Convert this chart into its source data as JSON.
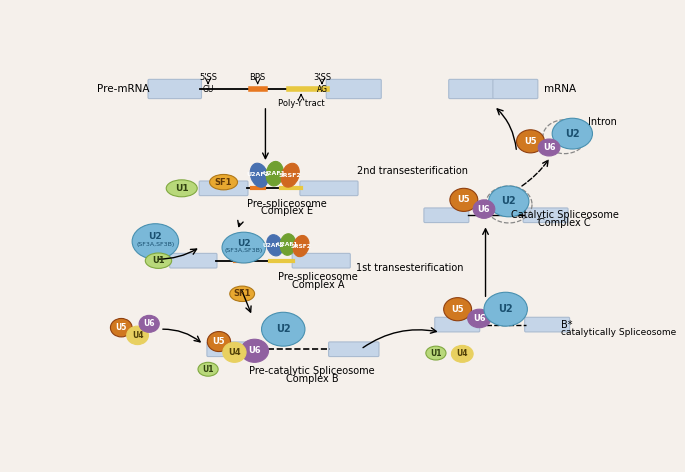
{
  "bg_color": "#f5f0eb",
  "box_color": "#c5d5e8",
  "box_edge": "#aabbd0",
  "premrna_label": "Pre-mRNA",
  "mrna_label": "mRNA",
  "intron_label": "Intron",
  "poly_y": "Poly-Y tract",
  "bps": "BPS",
  "ss5": "5'SS",
  "ss3": "3'SS",
  "gu": "GU",
  "ag": "AG",
  "complex_E_line1": "Pre-spliceosome",
  "complex_E_line2": "Complex E",
  "complex_A_line1": "Pre-spliceosome",
  "complex_A_line2": "Complex A",
  "complex_B_line1": "Pre-catalytic Spliceosome",
  "complex_B_line2": "Complex B",
  "complex_Bstar_line1": "B*",
  "complex_Bstar_line2": "catalytically Spliceosome",
  "complex_C_line1": "Catalytic Spliceosome",
  "complex_C_line2": "Complex C",
  "trans1": "1st transesterification",
  "trans2": "2nd transesterification",
  "sf1": "SF1",
  "colors": {
    "U1": "#b8d87a",
    "U2": "#7ab8d8",
    "U4": "#e8d060",
    "U5": "#d07820",
    "U6": "#9060a0",
    "SF1": "#e8a830",
    "U2AF2": "#4870b0",
    "U2AF1": "#70a030",
    "SRSF2": "#d06820",
    "orange_bps": "#e87820",
    "yellow_poly": "#e8c840",
    "intron_line": "#888888"
  }
}
